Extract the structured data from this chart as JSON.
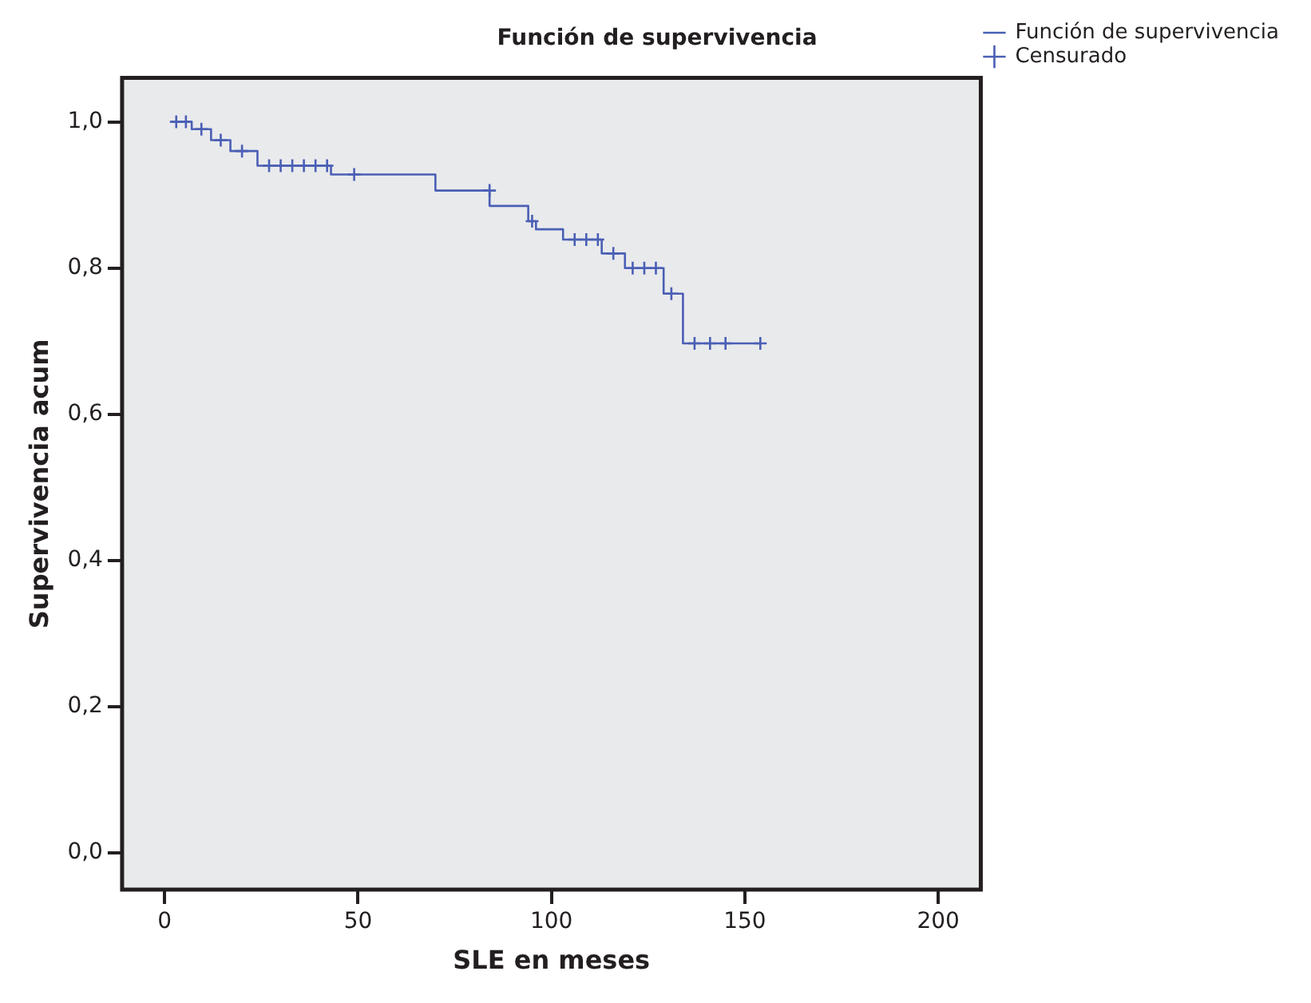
{
  "chart_data": {
    "type": "step",
    "title": "Función de supervivencia",
    "xlabel": "SLE en meses",
    "ylabel": "Supervivencia acum",
    "xlim": [
      -11,
      211
    ],
    "xticks": [
      0,
      50,
      100,
      150,
      200
    ],
    "ylim": [
      -0.05,
      1.06
    ],
    "yticks": [
      {
        "value": 0,
        "label": "0,0"
      },
      {
        "value": 0.2,
        "label": "0,2"
      },
      {
        "value": 0.4,
        "label": "0,4"
      },
      {
        "value": 0.6,
        "label": "0,6"
      },
      {
        "value": 0.8,
        "label": "0,8"
      },
      {
        "value": 1,
        "label": "1,0"
      }
    ],
    "grid": false,
    "legend": "top right",
    "series": [
      {
        "name": "Función de supervivencia",
        "color": "#4a5fb5",
        "marker": "none",
        "x": [
          1.5,
          7,
          12,
          17,
          24,
          43,
          70,
          84,
          94,
          96,
          103,
          113,
          119,
          129,
          134,
          154
        ],
        "values": [
          1.0,
          0.99,
          0.975,
          0.96,
          0.94,
          0.928,
          0.906,
          0.885,
          0.864,
          0.853,
          0.839,
          0.82,
          0.8,
          0.765,
          0.697,
          0.697
        ]
      },
      {
        "name": "Censurado",
        "type": "scatter",
        "color": "#4a5fb5",
        "marker": "cross",
        "x": [
          3,
          5.5,
          9.5,
          14.5,
          20,
          27,
          30,
          33,
          36,
          39,
          42,
          49,
          84,
          95,
          106,
          109,
          112,
          116,
          121,
          124,
          127,
          131,
          137,
          141,
          145,
          154
        ],
        "values": [
          1.0,
          1.0,
          0.99,
          0.975,
          0.96,
          0.94,
          0.94,
          0.94,
          0.94,
          0.94,
          0.94,
          0.928,
          0.906,
          0.864,
          0.839,
          0.839,
          0.839,
          0.82,
          0.8,
          0.8,
          0.8,
          0.765,
          0.697,
          0.697,
          0.697,
          0.697
        ]
      }
    ]
  }
}
